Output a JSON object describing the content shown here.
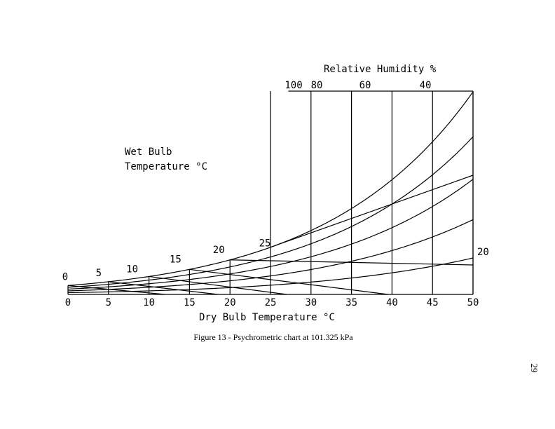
{
  "caption": "Figure 13 - Psychrometric chart at 101.325 kPa",
  "page_number": "29",
  "chart_data": {
    "type": "line",
    "title": "",
    "xlabel": "Dry Bulb Temperature °C",
    "rh_header": "Relative Humidity %",
    "wb_label_line1": "Wet Bulb",
    "wb_label_line2": "Temperature °C",
    "xlim": [
      0,
      50
    ],
    "x_ticks": [
      0,
      5,
      10,
      15,
      20,
      25,
      30,
      35,
      40,
      45,
      50
    ],
    "x_tick_labels": [
      "0",
      "5",
      "10",
      "15",
      "20",
      "25",
      "30",
      "35",
      "40",
      "45",
      "50"
    ],
    "grid": "vertical lines at each 5 °C dry bulb step",
    "relative_humidity_curves": [
      {
        "name": "100",
        "label": "100",
        "rh": 100
      },
      {
        "name": "80",
        "label": "80",
        "rh": 80
      },
      {
        "name": "60",
        "label": "60",
        "rh": 60
      },
      {
        "name": "40",
        "label": "40",
        "rh": 40
      },
      {
        "name": "20",
        "label": "20",
        "rh": 20
      }
    ],
    "wet_bulb_lines": [
      {
        "name": "0",
        "label": "0",
        "wb": 0,
        "end_db": 12
      },
      {
        "name": "5",
        "label": "5",
        "wb": 5,
        "end_db": 18.5
      },
      {
        "name": "10",
        "label": "10",
        "wb": 10,
        "end_db": 27
      },
      {
        "name": "15",
        "label": "15",
        "wb": 15,
        "end_db": 39.5
      },
      {
        "name": "20",
        "label": "20",
        "wb": 20,
        "end_db": 50
      },
      {
        "name": "25",
        "label": "25",
        "wb": 25,
        "end_db": 50
      }
    ]
  }
}
